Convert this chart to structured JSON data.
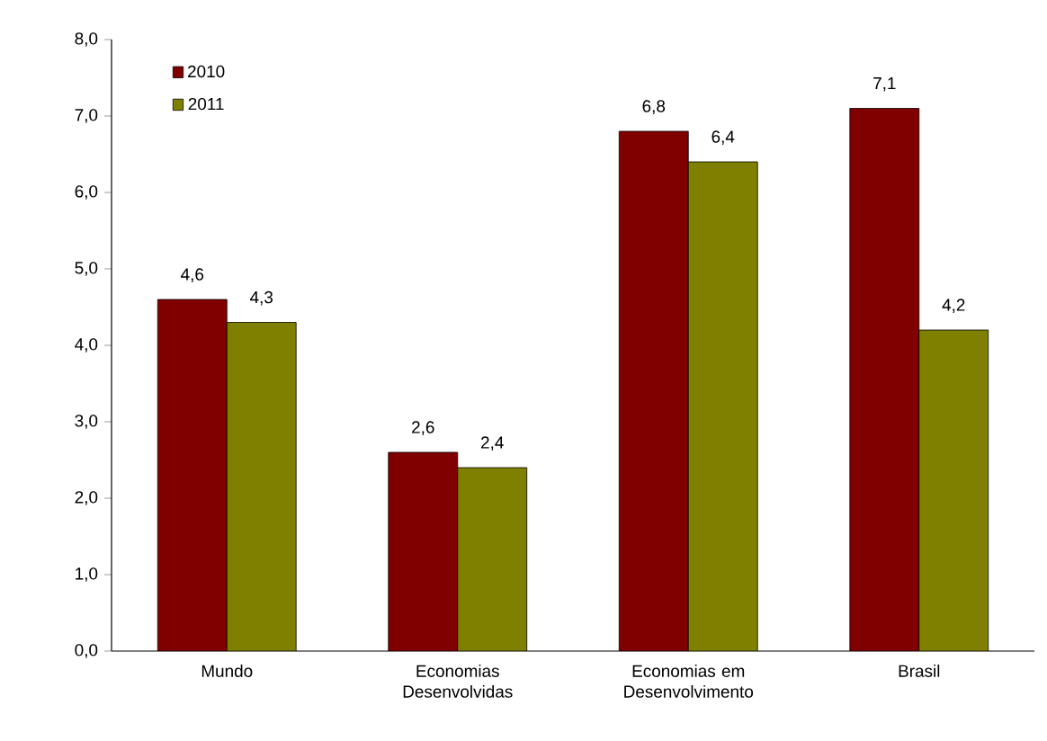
{
  "chart_data": {
    "type": "bar",
    "categories": [
      "Mundo",
      "Economias Desenvolvidas",
      "Economias em Desenvolvimento",
      "Brasil"
    ],
    "series": [
      {
        "name": "2010",
        "color": "#800000",
        "values": [
          4.6,
          2.6,
          6.8,
          7.1
        ],
        "value_labels": [
          "4,6",
          "2,6",
          "6,8",
          "7,1"
        ]
      },
      {
        "name": "2011",
        "color": "#808000",
        "values": [
          4.3,
          2.4,
          6.4,
          4.2
        ],
        "value_labels": [
          "4,3",
          "2,4",
          "6,4",
          "4,2"
        ]
      }
    ],
    "ylim": [
      0,
      8
    ],
    "yticks": [
      {
        "value": 0,
        "label": "0,0"
      },
      {
        "value": 1,
        "label": "1,0"
      },
      {
        "value": 2,
        "label": "2,0"
      },
      {
        "value": 3,
        "label": "3,0"
      },
      {
        "value": 4,
        "label": "4,0"
      },
      {
        "value": 5,
        "label": "5,0"
      },
      {
        "value": 6,
        "label": "6,0"
      },
      {
        "value": 7,
        "label": "7,0"
      },
      {
        "value": 8,
        "label": "8,0"
      }
    ],
    "grid": false,
    "legend": "top left"
  }
}
